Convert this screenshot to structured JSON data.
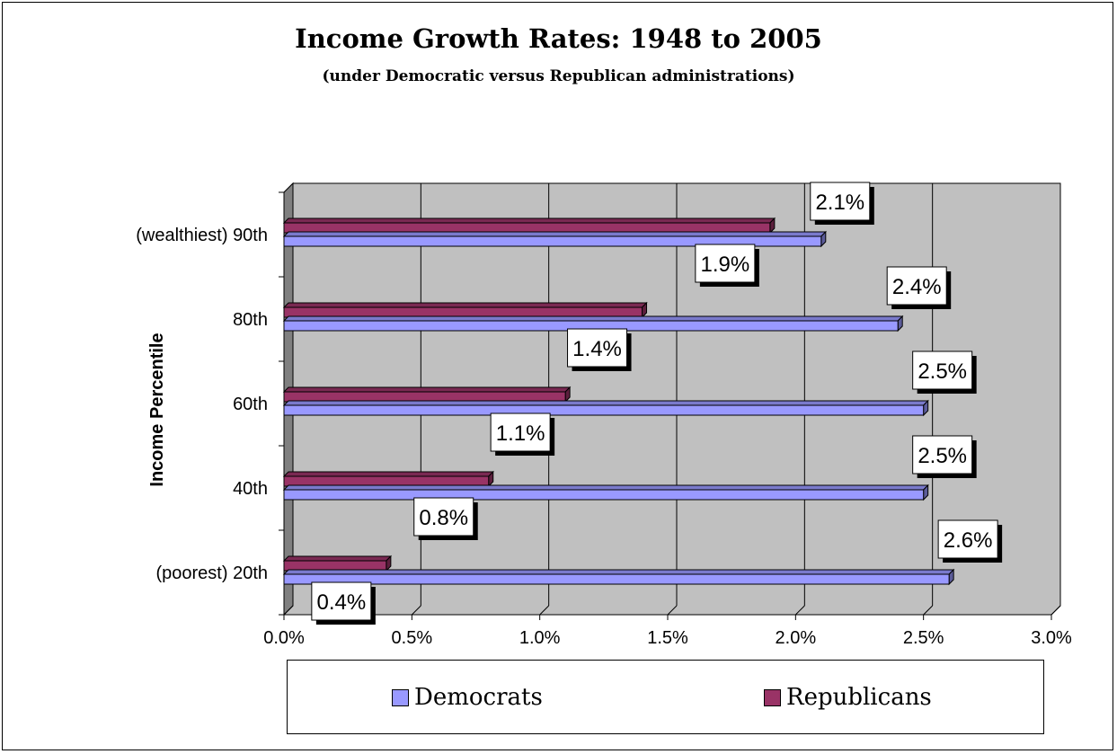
{
  "chart_data": {
    "type": "bar",
    "orientation": "horizontal",
    "title": "Income Growth Rates: 1948 to 2005",
    "subtitle": "(under Democratic versus Republican administrations)",
    "ylabel": "Income Percentile",
    "xlabel": "",
    "categories": [
      "(poorest) 20th",
      "40th",
      "60th",
      "80th",
      "(wealthiest) 90th"
    ],
    "series": [
      {
        "name": "Democrats",
        "values": [
          2.6,
          2.5,
          2.5,
          2.4,
          2.1
        ],
        "labels": [
          "2.6%",
          "2.5%",
          "2.5%",
          "2.4%",
          "2.1%"
        ],
        "color": "#9999ff"
      },
      {
        "name": "Republicans",
        "values": [
          0.4,
          0.8,
          1.1,
          1.4,
          1.9
        ],
        "labels": [
          "0.4%",
          "0.8%",
          "1.1%",
          "1.4%",
          "1.9%"
        ],
        "color": "#993366"
      }
    ],
    "xlim": [
      0,
      3.0
    ],
    "x_ticks": [
      "0.0%",
      "0.5%",
      "1.0%",
      "1.5%",
      "2.0%",
      "2.5%",
      "3.0%"
    ],
    "grid": true,
    "plot_background": "#c0c0c0",
    "legend_position": "bottom"
  }
}
